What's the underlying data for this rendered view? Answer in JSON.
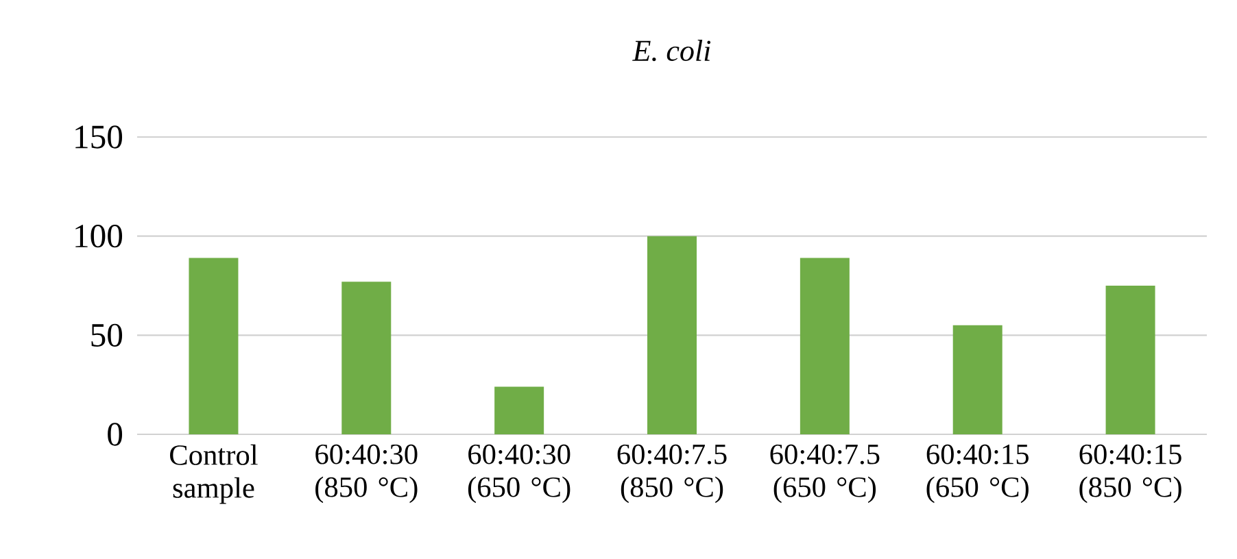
{
  "chart_data": {
    "type": "bar",
    "title": "E. coli",
    "categories": [
      "Control sample",
      "60:40:30 (850 °C)",
      "60:40:30 (650 °C)",
      "60:40:7.5 (850 °C)",
      "60:40:7.5 (650 °C)",
      "60:40:15 (650 °C)",
      "60:40:15 (850 °C)"
    ],
    "values": [
      89,
      77,
      24,
      100,
      89,
      55,
      75
    ],
    "color": "#70ad47",
    "ylim": [
      0,
      150
    ],
    "yticks": [
      0,
      50,
      100,
      150
    ],
    "grid": "y"
  }
}
